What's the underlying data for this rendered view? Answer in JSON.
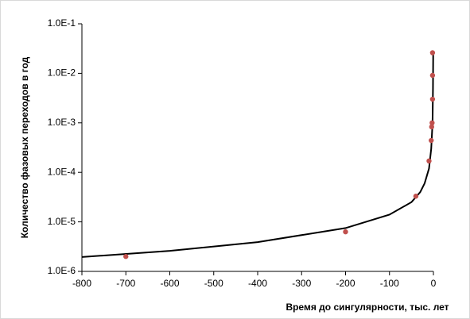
{
  "chart_data": {
    "type": "scatter",
    "x_label": "Время до сингулярности, тыс. лет",
    "y_label": "Количество фазовых переходов в год",
    "yscale": "log",
    "xlim": [
      -800,
      0
    ],
    "ylim": [
      1e-06,
      0.1
    ],
    "xticks": [
      -800,
      -700,
      -600,
      -500,
      -400,
      -300,
      -200,
      -100,
      0
    ],
    "yticks": [
      {
        "value": 1e-06,
        "label": "1.0E-6"
      },
      {
        "value": 1e-05,
        "label": "1.0E-5"
      },
      {
        "value": 0.0001,
        "label": "1.0E-4"
      },
      {
        "value": 0.001,
        "label": "1.0E-3"
      },
      {
        "value": 0.01,
        "label": "1.0E-2"
      },
      {
        "value": 0.1,
        "label": "1.0E-1"
      }
    ],
    "series": [
      {
        "type": "scatter",
        "color": "#c0504d",
        "x": [
          -700,
          -200,
          -40,
          -10,
          -5,
          -4,
          -3,
          -2,
          -2,
          -2
        ],
        "values": [
          2e-06,
          6.3e-06,
          3.3e-05,
          0.00017,
          0.00044,
          0.00083,
          0.001,
          0.003,
          0.0091,
          0.026
        ]
      },
      {
        "type": "line",
        "color": "#000000",
        "x": [
          -800,
          -600,
          -400,
          -200,
          -100,
          -50,
          -30,
          -20,
          -10,
          -5,
          -2,
          -1,
          -0.5
        ],
        "values": [
          1.95e-06,
          2.6e-06,
          3.9e-06,
          7.5e-06,
          1.4e-05,
          2.5e-05,
          4e-05,
          6e-05,
          0.00012,
          0.0003,
          0.001,
          0.005,
          0.025
        ]
      }
    ]
  }
}
